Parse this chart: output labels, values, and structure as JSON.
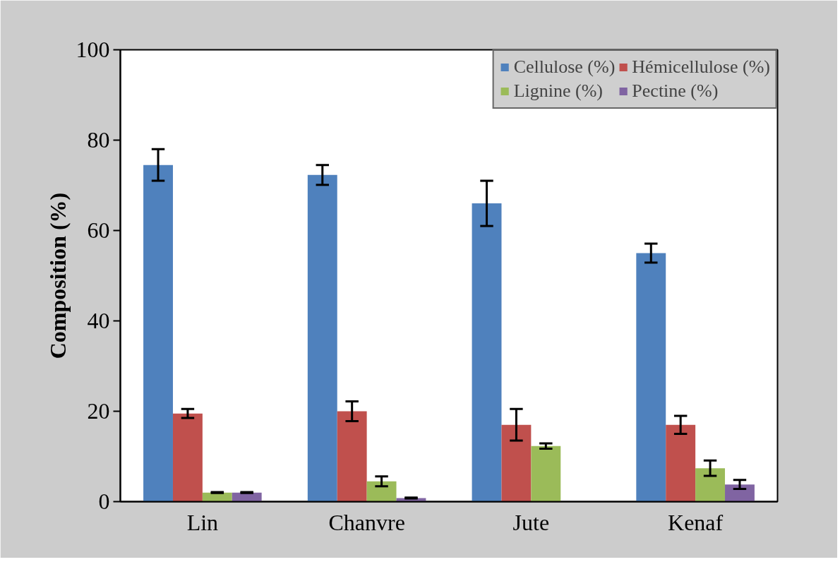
{
  "chart_data": {
    "type": "bar",
    "ylabel": "Composition (%)",
    "categories": [
      "Lin",
      "Chanvre",
      "Jute",
      "Kenaf"
    ],
    "series": [
      {
        "name": "Cellulose (%)",
        "color": "#4f81bd",
        "values": [
          74.5,
          72.3,
          66.0,
          55.0
        ],
        "errors": [
          3.5,
          2.2,
          5.0,
          2.1
        ]
      },
      {
        "name": "Hémicellulose (%)",
        "color": "#c0504d",
        "values": [
          19.5,
          20.0,
          17.0,
          17.0
        ],
        "errors": [
          1.0,
          2.2,
          3.5,
          2.0
        ]
      },
      {
        "name": "Lignine (%)",
        "color": "#9bbb59",
        "values": [
          2.0,
          4.5,
          12.3,
          7.4
        ],
        "errors": [
          0.1,
          1.1,
          0.6,
          1.7
        ]
      },
      {
        "name": "Pectine (%)",
        "color": "#8064a2",
        "values": [
          2.0,
          0.8,
          null,
          3.8
        ],
        "errors": [
          0.1,
          0.1,
          null,
          1.0
        ]
      }
    ],
    "ylim": [
      0,
      100
    ],
    "yticks": [
      0,
      20,
      40,
      60,
      80,
      100
    ],
    "grid": false,
    "legend": "top right"
  }
}
